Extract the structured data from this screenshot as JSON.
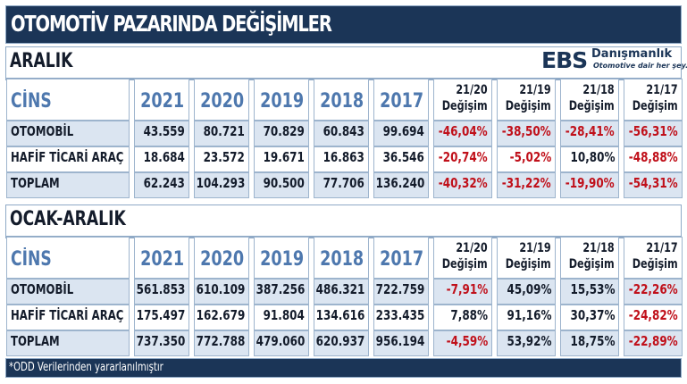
{
  "title": "OTOMOTİV PAZARINDA DEĞİŞİMLER",
  "logo": {
    "brand": "EBS",
    "name": "Danışmanlık",
    "tagline": "Otomotive dair her şey..."
  },
  "colors": {
    "navy": "#1b3557",
    "header_blue": "#4e78ae",
    "row_shade": "#dbe5f1",
    "negative": "#c0101a",
    "border": "#9db4cd"
  },
  "header": {
    "cins": "CİNS",
    "years": [
      "2021",
      "2020",
      "2019",
      "2018",
      "2017"
    ],
    "changes": [
      {
        "period": "21/20",
        "label": "Değişim"
      },
      {
        "period": "21/19",
        "label": "Değişim"
      },
      {
        "period": "21/18",
        "label": "Değişim"
      },
      {
        "period": "21/17",
        "label": "Değişim"
      }
    ]
  },
  "sections": [
    {
      "title": "ARALIK",
      "rows": [
        {
          "label": "OTOMOBİL",
          "values": [
            "43.559",
            "80.721",
            "70.829",
            "60.843",
            "99.694"
          ],
          "changes": [
            "-46,04%",
            "-38,50%",
            "-28,41%",
            "-56,31%"
          ]
        },
        {
          "label": "HAFİF TİCARİ ARAÇ",
          "values": [
            "18.684",
            "23.572",
            "19.671",
            "16.863",
            "36.546"
          ],
          "changes": [
            "-20,74%",
            "-5,02%",
            "10,80%",
            "-48,88%"
          ]
        },
        {
          "label": "TOPLAM",
          "values": [
            "62.243",
            "104.293",
            "90.500",
            "77.706",
            "136.240"
          ],
          "changes": [
            "-40,32%",
            "-31,22%",
            "-19,90%",
            "-54,31%"
          ]
        }
      ]
    },
    {
      "title": "OCAK-ARALIK",
      "rows": [
        {
          "label": "OTOMOBİL",
          "values": [
            "561.853",
            "610.109",
            "387.256",
            "486.321",
            "722.759"
          ],
          "changes": [
            "-7,91%",
            "45,09%",
            "15,53%",
            "-22,26%"
          ]
        },
        {
          "label": "HAFİF TİCARİ ARAÇ",
          "values": [
            "175.497",
            "162.679",
            "91.804",
            "134.616",
            "233.435"
          ],
          "changes": [
            "7,88%",
            "91,16%",
            "30,37%",
            "-24,82%"
          ]
        },
        {
          "label": "TOPLAM",
          "values": [
            "737.350",
            "772.788",
            "479.060",
            "620.937",
            "956.194"
          ],
          "changes": [
            "-4,59%",
            "53,92%",
            "18,75%",
            "-22,89%"
          ]
        }
      ]
    }
  ],
  "footer": "*ODD Verilerinden yararlanılmıştır"
}
